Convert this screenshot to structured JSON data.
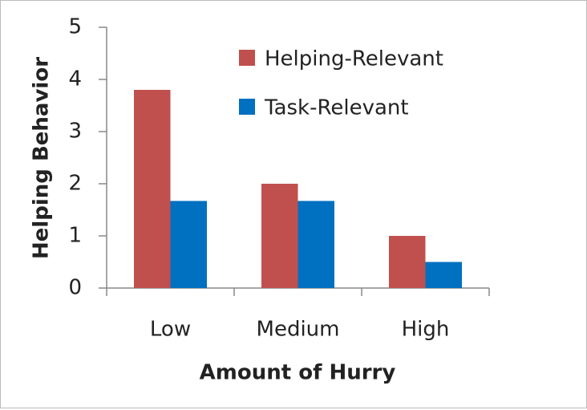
{
  "chart_data": {
    "type": "bar",
    "x_label": "Amount of Hurry",
    "y_label": "Helping Behavior",
    "categories": [
      "Low",
      "Medium",
      "High"
    ],
    "series": [
      {
        "name": "Helping-Relevant",
        "color": "#c0504d",
        "values": [
          3.8,
          2.0,
          1.0
        ]
      },
      {
        "name": "Task-Relevant",
        "color": "#0070c0",
        "values": [
          1.67,
          1.67,
          0.5
        ]
      }
    ],
    "ylim": [
      0,
      5
    ],
    "yticks": [
      0,
      1,
      2,
      3,
      4,
      5
    ],
    "grid": false,
    "legend": "top-right"
  }
}
